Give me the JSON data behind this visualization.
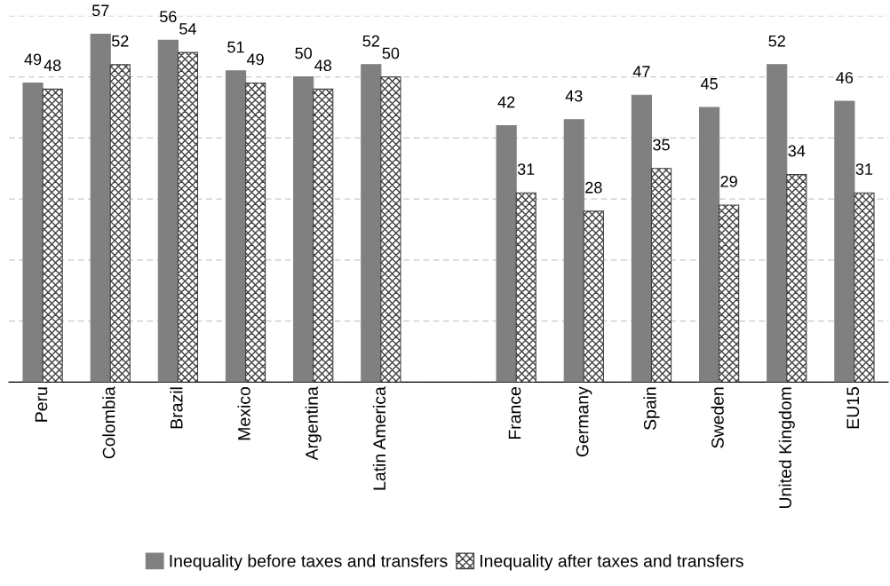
{
  "chart_data": {
    "type": "bar",
    "categories": [
      "Peru",
      "Colombia",
      "Brazil",
      "Mexico",
      "Argentina",
      "Latin America",
      null,
      "France",
      "Germany",
      "Spain",
      "Sweden",
      "United Kingdom",
      "EU15"
    ],
    "series": [
      {
        "name": "Inequality before taxes and transfers",
        "color": "#808080",
        "values": [
          49,
          57,
          56,
          51,
          50,
          52,
          null,
          42,
          43,
          47,
          45,
          52,
          46
        ]
      },
      {
        "name": "Inequality after taxes and transfers",
        "color": "#404040",
        "values": [
          48,
          52,
          54,
          49,
          48,
          50,
          null,
          31,
          28,
          35,
          29,
          34,
          31
        ]
      }
    ],
    "ylim": [
      0,
      60
    ],
    "yticks": [
      {
        "value": 0,
        "label": null
      },
      {
        "value": 10,
        "label": null
      },
      {
        "value": 20,
        "label": null
      },
      {
        "value": 30,
        "label": null
      },
      {
        "value": 40,
        "label": null
      },
      {
        "value": 50,
        "label": null
      },
      {
        "value": 60,
        "label": null
      }
    ],
    "tick_labels": "x",
    "grid": "y",
    "legend": "bottom",
    "data_labels": true
  }
}
